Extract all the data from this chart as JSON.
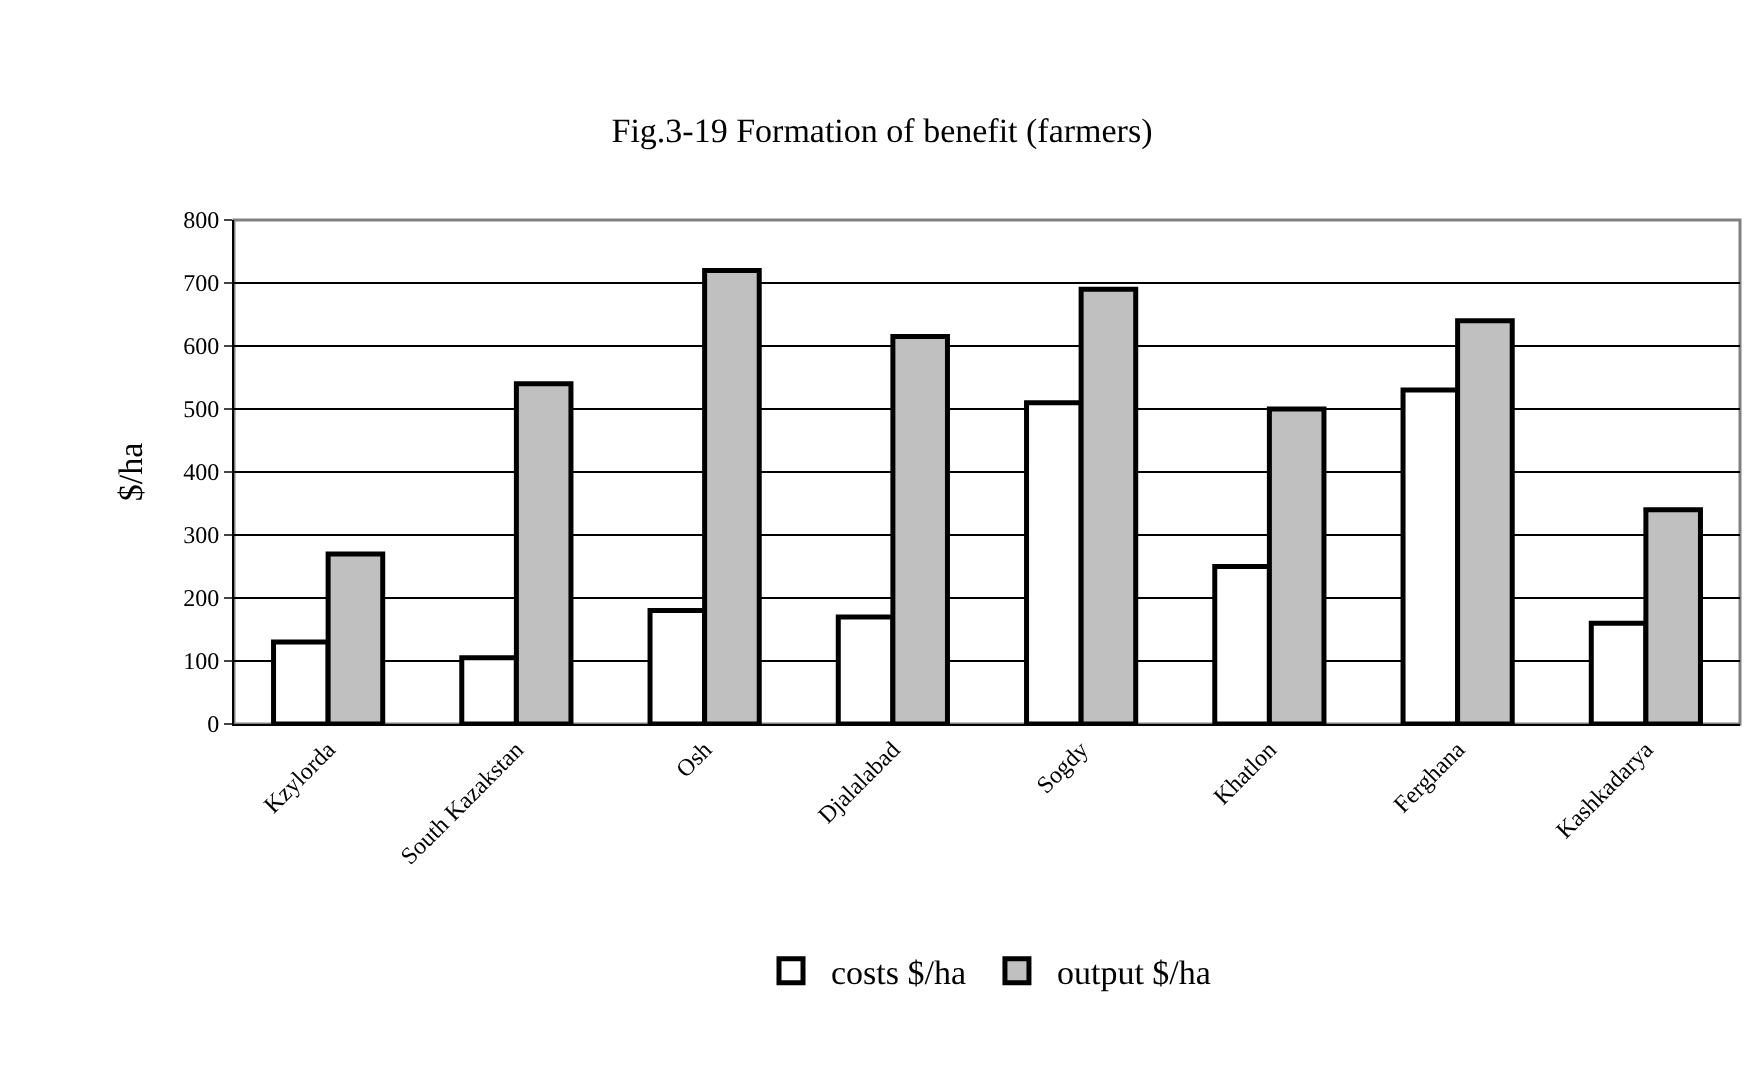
{
  "chart_data": {
    "type": "bar",
    "title": "Fig.3-19 Formation of benefit (farmers)",
    "ylabel": "$/ha",
    "categories": [
      "Kzylorda",
      "South Kazakstan",
      "Osh",
      "Djalalabad",
      "Sogdy",
      "Khatlon",
      "Ferghana",
      "Kashkadarya"
    ],
    "series": [
      {
        "name": "costs $/ha",
        "color": "#ffffff",
        "values": [
          130,
          105,
          180,
          170,
          510,
          250,
          530,
          160
        ]
      },
      {
        "name": "output $/ha",
        "color": "#c0c0c0",
        "values": [
          270,
          540,
          720,
          615,
          690,
          500,
          640,
          340
        ]
      }
    ],
    "ylim": [
      0,
      800
    ],
    "yticks": [
      0,
      100,
      200,
      300,
      400,
      500,
      600,
      700,
      800
    ],
    "grid": "y",
    "legend": "bottom"
  }
}
